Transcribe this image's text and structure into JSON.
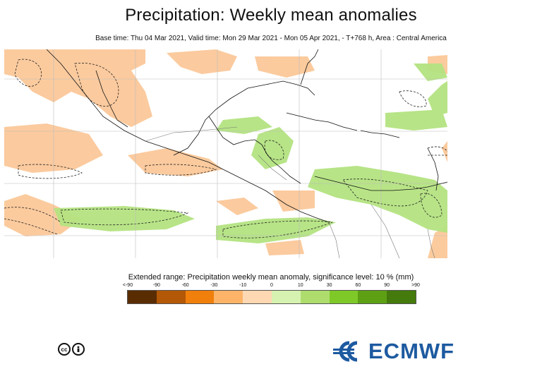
{
  "title": "Precipitation: Weekly mean anomalies",
  "subtitle": "Base time: Thu 04 Mar 2021, Valid time: Mon 29 Mar 2021 - Mon 05 Apr 2021, - T+768 h, Area : Central America",
  "legend": {
    "title": "Extended range: Precipitation weekly mean anomaly, significance level: 10 % (mm)",
    "ticks": [
      "<-90",
      "-90",
      "-60",
      "-30",
      "-10",
      "0",
      "10",
      "30",
      "60",
      "90",
      ">90"
    ],
    "colors": [
      "#5a2c02",
      "#b35806",
      "#f07f0b",
      "#fdb468",
      "#fdd8b3",
      "#d6f2b0",
      "#aedd6e",
      "#7ec928",
      "#5da014",
      "#457a0c"
    ]
  },
  "map": {
    "positive_color": "#b4e381",
    "negative_color": "#fbc899"
  },
  "logos": {
    "license": [
      "cc",
      "by"
    ],
    "org": "ECMWF",
    "org_color": "#1d5aa0"
  }
}
